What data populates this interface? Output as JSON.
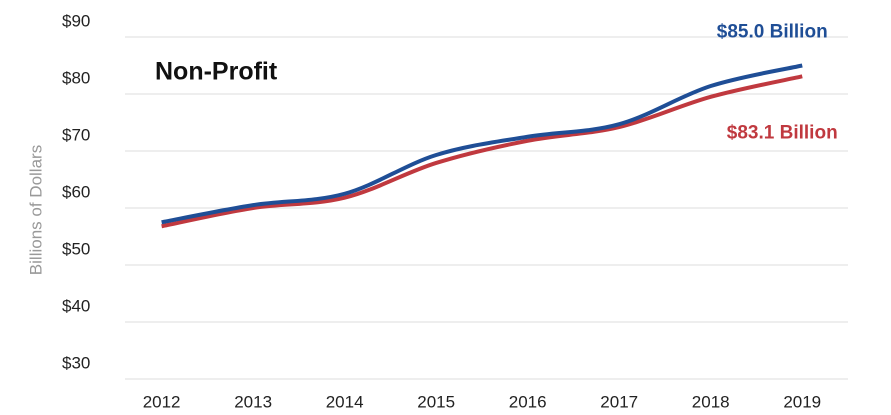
{
  "chart_data": {
    "type": "line",
    "title": "Non-Profit",
    "y_label": "Billions of Dollars",
    "x": [
      2012,
      2013,
      2014,
      2015,
      2016,
      2017,
      2018,
      2019
    ],
    "xlim": [
      2011.6,
      2019.5
    ],
    "xticks": [
      2012,
      2013,
      2014,
      2015,
      2016,
      2017,
      2018,
      2019
    ],
    "ylim": [
      30,
      90
    ],
    "yticks": [
      {
        "value": 30,
        "label": "$30"
      },
      {
        "value": 40,
        "label": "$40"
      },
      {
        "value": 50,
        "label": "$50"
      },
      {
        "value": 60,
        "label": "$60"
      },
      {
        "value": 70,
        "label": "$70"
      },
      {
        "value": 80,
        "label": "$80"
      },
      {
        "value": 90,
        "label": "$90"
      }
    ],
    "grid": true,
    "series": [
      {
        "color": "#1f4e96",
        "values": [
          57.5,
          60.5,
          62.5,
          69.3,
          72.5,
          74.7,
          81.4,
          85.0
        ],
        "value_labels": [
          null,
          null,
          null,
          null,
          null,
          null,
          null,
          "$85.0 Billion"
        ]
      },
      {
        "color": "#c0393f",
        "values": [
          56.8,
          60.0,
          61.8,
          67.9,
          71.8,
          74.2,
          79.5,
          83.1
        ],
        "value_labels": [
          null,
          null,
          null,
          null,
          null,
          null,
          null,
          "$83.1 Billion"
        ]
      }
    ]
  }
}
